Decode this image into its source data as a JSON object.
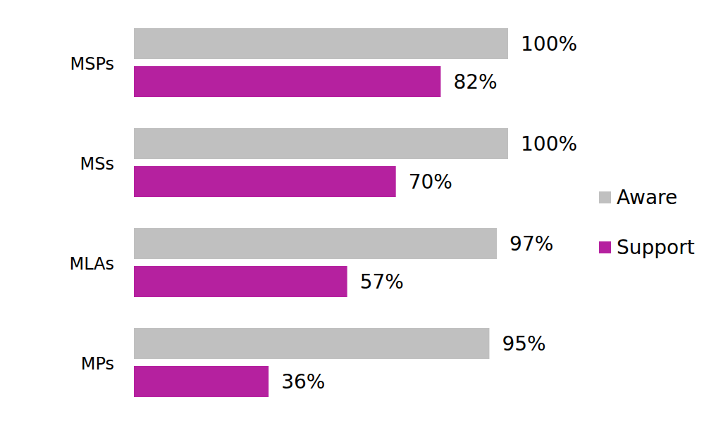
{
  "chart_data": {
    "type": "bar",
    "orientation": "horizontal",
    "categories": [
      "MSPs",
      "MSs",
      "MLAs",
      "MPs"
    ],
    "series": [
      {
        "name": "Aware",
        "color": "#c0c0c0",
        "values": [
          100,
          100,
          97,
          95
        ],
        "value_labels": [
          "100%",
          "100%",
          "97%",
          "95%"
        ]
      },
      {
        "name": "Support",
        "color": "#b5219f",
        "values": [
          82,
          70,
          57,
          36
        ],
        "value_labels": [
          "82%",
          "70%",
          "57%",
          "36%"
        ]
      }
    ],
    "xlim": [
      0,
      100
    ],
    "tick_labels": false,
    "grid": false,
    "legend": "right",
    "data_labels": true
  }
}
